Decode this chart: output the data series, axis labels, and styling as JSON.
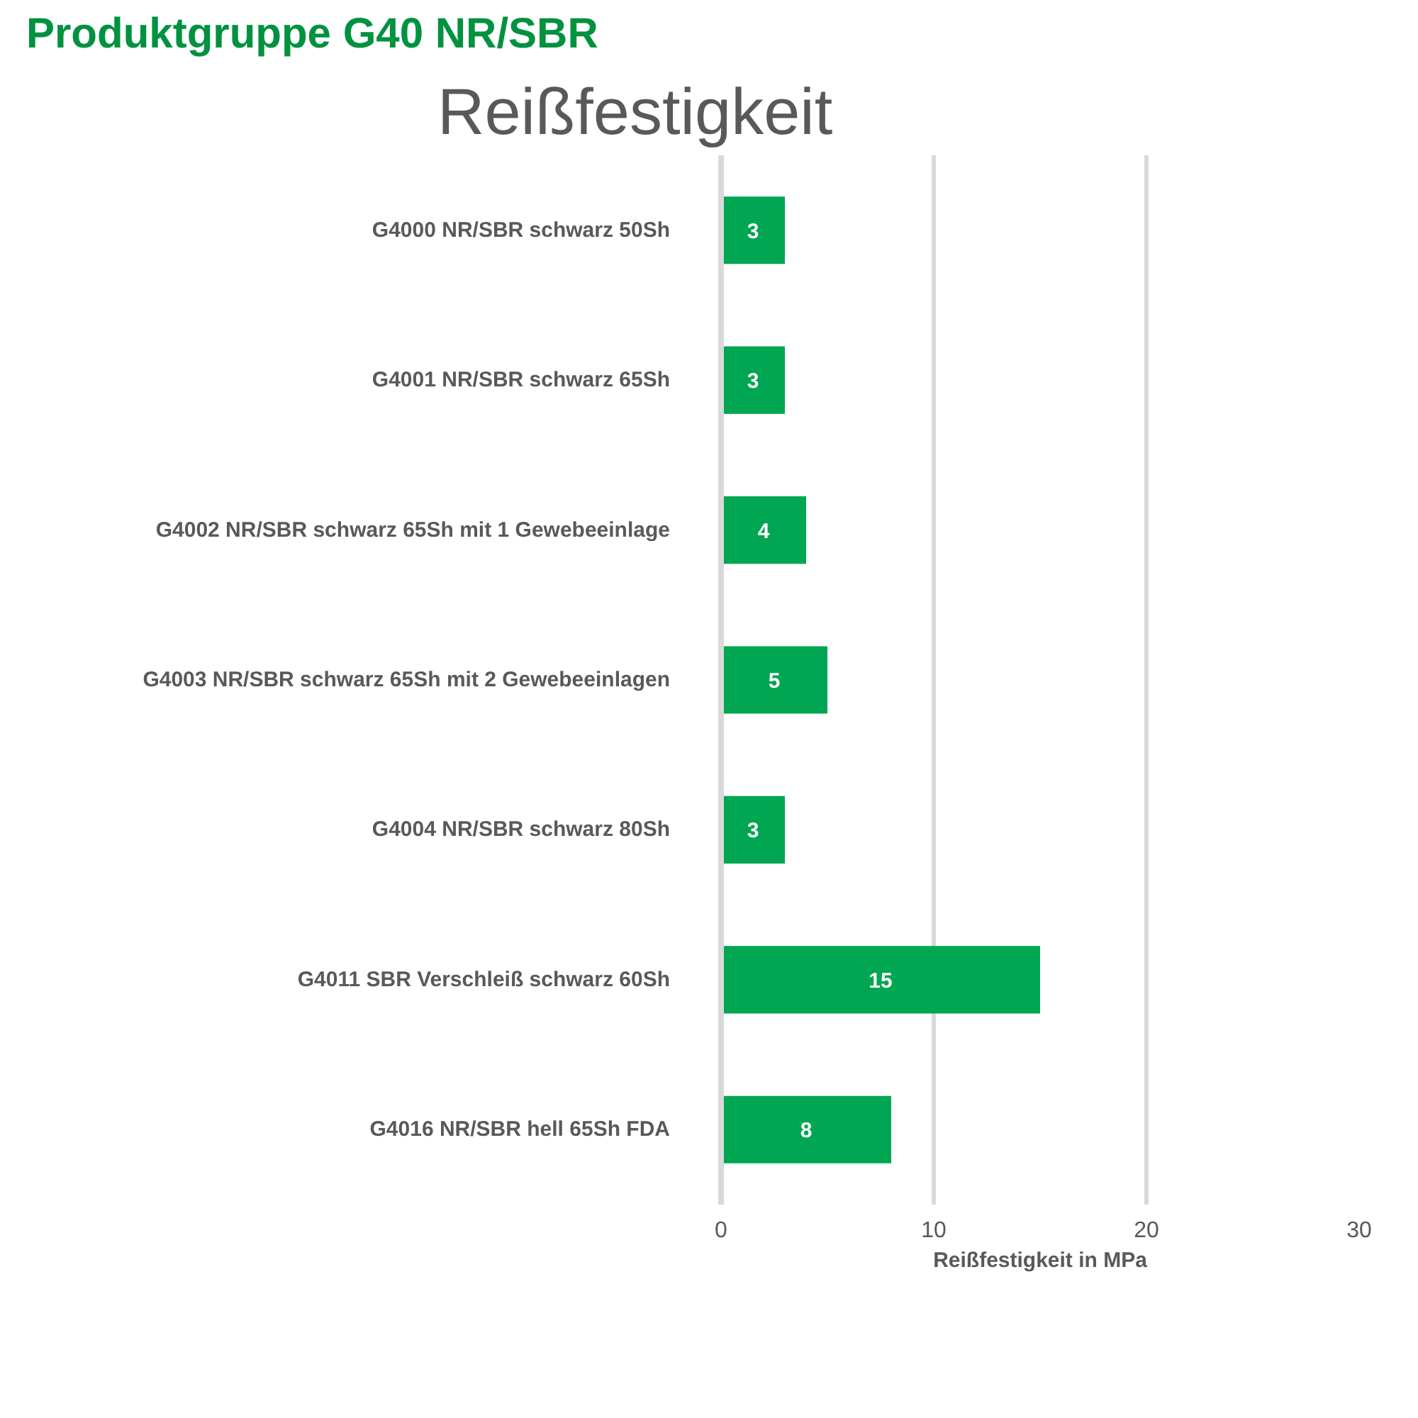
{
  "chart_data": {
    "type": "bar",
    "orientation": "horizontal",
    "title": "Produktgruppe G40 NR/SBR",
    "subtitle": "Reißfestigkeit",
    "xlabel": "Reißfestigkeit in MPa",
    "categories": [
      "G4000 NR/SBR schwarz 50Sh",
      "G4001 NR/SBR schwarz 65Sh",
      "G4002 NR/SBR schwarz 65Sh mit 1 Gewebeeinlage",
      "G4003 NR/SBR schwarz 65Sh mit 2 Gewebeeinlagen",
      "G4004 NR/SBR schwarz 80Sh",
      "G4011 SBR Verschleiß schwarz 60Sh",
      "G4016 NR/SBR hell 65Sh FDA"
    ],
    "values": [
      3,
      3,
      4,
      5,
      3,
      15,
      8
    ],
    "color": "#00a651",
    "xlim": [
      0,
      30
    ],
    "xticks": [
      0,
      10,
      20,
      30
    ],
    "grid": "x",
    "data_labels": true
  }
}
